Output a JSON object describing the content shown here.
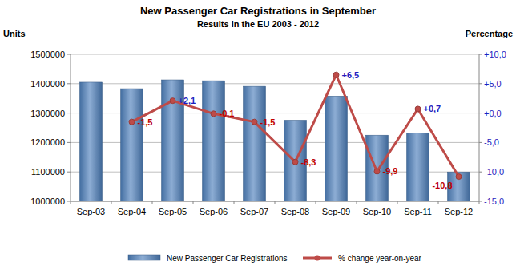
{
  "chart_data": {
    "type": "bar",
    "title": "New Passenger Car Registrations in September",
    "subtitle": "Results in the EU 2003 - 2012",
    "y_label": "Units",
    "y2_label": "Percentage",
    "categories": [
      "Sep-03",
      "Sep-04",
      "Sep-05",
      "Sep-06",
      "Sep-07",
      "Sep-08",
      "Sep-09",
      "Sep-10",
      "Sep-11",
      "Sep-12"
    ],
    "series": [
      {
        "name": "New Passenger Car Registrations",
        "type": "bar",
        "color": "#4f81bd",
        "values": [
          1405000,
          1383000,
          1413000,
          1410000,
          1391000,
          1276000,
          1358000,
          1225000,
          1232000,
          1100000
        ]
      },
      {
        "name": "% change year-on-year",
        "type": "line",
        "color": "#be4b48",
        "axis": "y2",
        "marker": "circle",
        "data_labels": true,
        "values": [
          null,
          -1.5,
          2.1,
          -0.1,
          -1.5,
          -8.3,
          6.5,
          -9.9,
          0.7,
          -10.8
        ],
        "value_labels": [
          null,
          "-1,5",
          "+2,1",
          "-0,1",
          "-1,5",
          "-8,3",
          "+6,5",
          "-9,9",
          "+0,7",
          "-10,8"
        ]
      }
    ],
    "ylim": [
      1000000,
      1500000
    ],
    "yticks": [
      1000000,
      1100000,
      1200000,
      1300000,
      1400000,
      1500000
    ],
    "y2lim": [
      -15,
      10
    ],
    "y2ticks": [
      {
        "value": -15,
        "label": "-15,0"
      },
      {
        "value": -10,
        "label": "-10,0"
      },
      {
        "value": -5,
        "label": "-5,0"
      },
      {
        "value": 0,
        "label": "+0,0"
      },
      {
        "value": 5,
        "label": "+5,0"
      },
      {
        "value": 10,
        "label": "+10,0"
      }
    ],
    "grid": true,
    "legend": "bottom"
  }
}
